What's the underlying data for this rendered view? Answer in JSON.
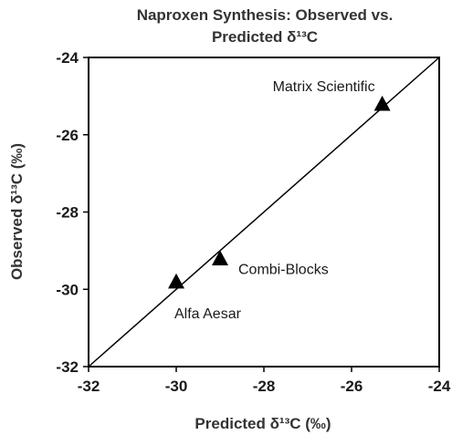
{
  "chart_data": {
    "type": "scatter",
    "title": [
      "Naproxen Synthesis: Observed vs.",
      "Predicted δ¹³C"
    ],
    "xlabel": "Predicted δ¹³C (‰)",
    "ylabel": "Observed δ¹³C (‰)",
    "xlim": [
      -32,
      -24
    ],
    "ylim": [
      -32,
      -24
    ],
    "xticks": [
      -32,
      -30,
      -28,
      -26,
      -24
    ],
    "yticks": [
      -32,
      -30,
      -28,
      -26,
      -24
    ],
    "grid": false,
    "legend": "none",
    "marker": "triangle",
    "marker_color": "#000000",
    "reference_line": {
      "from": [
        -32,
        -32
      ],
      "to": [
        -24,
        -24
      ]
    },
    "points": [
      {
        "label": "Matrix Scientific",
        "x": -25.3,
        "y": -25.2
      },
      {
        "label": "Combi-Blocks",
        "x": -29.0,
        "y": -29.2
      },
      {
        "label": "Alfa Aesar",
        "x": -30.0,
        "y": -29.8
      }
    ]
  }
}
